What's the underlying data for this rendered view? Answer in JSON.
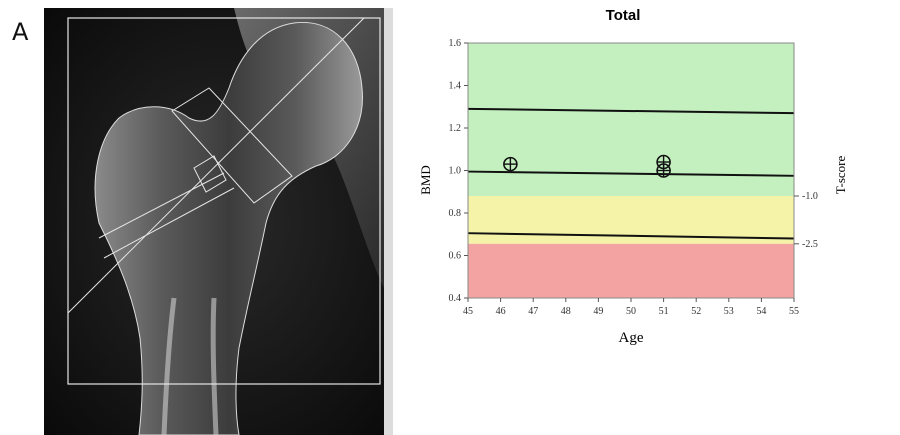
{
  "panel_label": "A",
  "chart_data": {
    "type": "scatter",
    "title": "Total",
    "xlabel": "Age",
    "ylabel": "BMD",
    "y2label": "T-score",
    "xlim": [
      45,
      55
    ],
    "ylim": [
      0.4,
      1.6
    ],
    "x_ticks": [
      "45",
      "46",
      "47",
      "48",
      "49",
      "50",
      "51",
      "52",
      "53",
      "54",
      "55"
    ],
    "y_ticks": [
      "0.4",
      "0.6",
      "0.8",
      "1.0",
      "1.2",
      "1.4",
      "1.6"
    ],
    "tscore_ticks": [
      {
        "label": "-1.0",
        "bmd": 0.88
      },
      {
        "label": "-2.5",
        "bmd": 0.655
      }
    ],
    "bands": [
      {
        "name": "normal",
        "from": 0.88,
        "to": 1.6,
        "color": "#c4f0bf"
      },
      {
        "name": "osteopenia",
        "from": 0.655,
        "to": 0.88,
        "color": "#f5f3a8"
      },
      {
        "name": "osteoporosis",
        "from": 0.4,
        "to": 0.655,
        "color": "#f4a3a3"
      }
    ],
    "reference_lines": [
      {
        "name": "upper",
        "y_start": 1.29,
        "y_end": 1.27
      },
      {
        "name": "mean",
        "y_start": 0.995,
        "y_end": 0.975
      },
      {
        "name": "lower",
        "y_start": 0.705,
        "y_end": 0.68
      }
    ],
    "points": [
      {
        "x": 46.3,
        "y": 1.03
      },
      {
        "x": 51.0,
        "y": 1.04
      },
      {
        "x": 51.0,
        "y": 1.0
      }
    ],
    "grid": false,
    "legend": "none"
  }
}
